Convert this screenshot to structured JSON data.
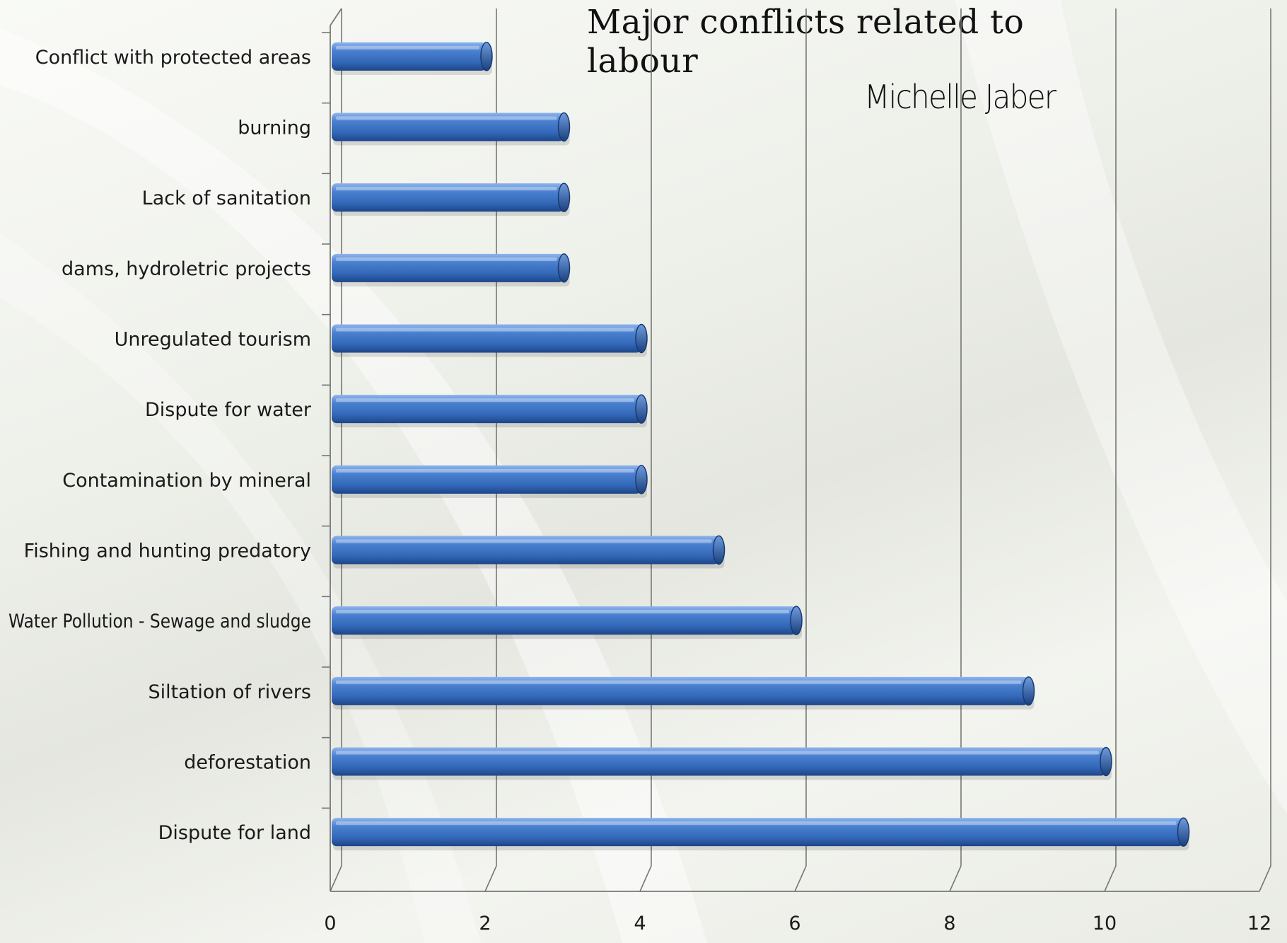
{
  "chart_data": {
    "type": "bar",
    "orientation": "horizontal",
    "title": "Major conflicts related to labour",
    "subtitle": "Michelle Jaber",
    "categories": [
      "Conflict with protected areas",
      "burning",
      "Lack of sanitation",
      "dams, hydroletric projects",
      "Unregulated tourism",
      "Dispute for water",
      "Contamination by mineral",
      "Fishing and hunting predatory",
      "Water Pollution - Sewage and sludge",
      "Siltation of rivers",
      "deforestation",
      "Dispute for land"
    ],
    "values": [
      2,
      3,
      3,
      3,
      4,
      4,
      4,
      5,
      6,
      9,
      10,
      11
    ],
    "xlim": [
      0,
      12
    ],
    "xticks": [
      0,
      2,
      4,
      6,
      8,
      10,
      12
    ],
    "grid": "vertical",
    "legend": "none",
    "colors": {
      "bar": "#3a6fc0",
      "bar_light": "#7aa6e6",
      "bar_dark": "#1f4a8f",
      "grid": "#777777"
    }
  }
}
